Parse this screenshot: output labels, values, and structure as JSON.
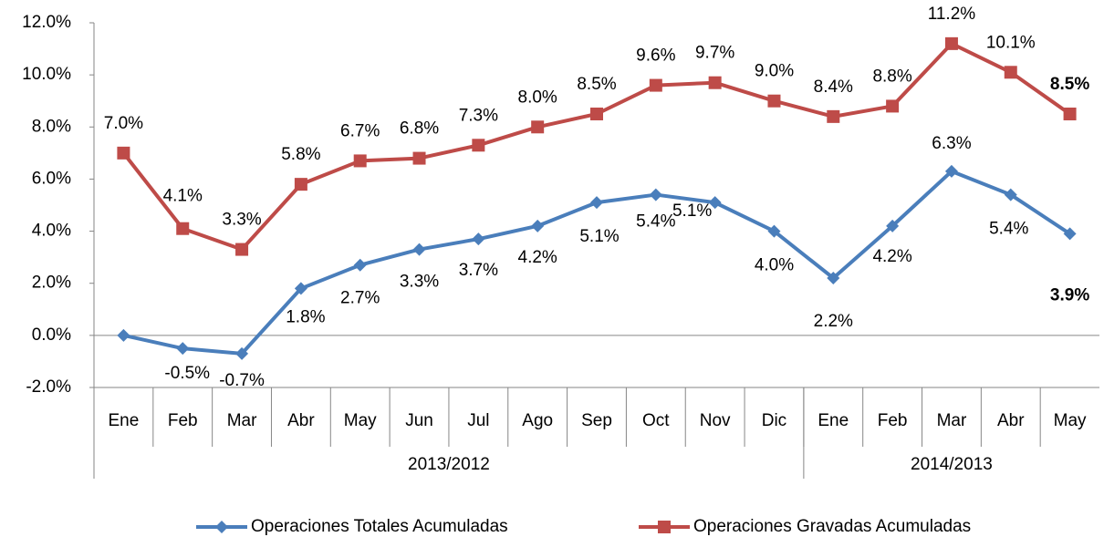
{
  "chart_data": {
    "type": "line",
    "categories": [
      "Ene",
      "Feb",
      "Mar",
      "Abr",
      "May",
      "Jun",
      "Jul",
      "Ago",
      "Sep",
      "Oct",
      "Nov",
      "Dic",
      "Ene",
      "Feb",
      "Mar",
      "Abr",
      "May"
    ],
    "groups": [
      {
        "label": "2013/2012",
        "span": 12
      },
      {
        "label": "2014/2013",
        "span": 5
      }
    ],
    "series": [
      {
        "name": "Operaciones Totales Acumuladas",
        "color": "#4a7ebb",
        "marker": "diamond",
        "values": [
          0.0,
          -0.5,
          -0.7,
          1.8,
          2.7,
          3.3,
          3.7,
          4.2,
          5.1,
          5.4,
          5.1,
          4.0,
          2.2,
          4.2,
          6.3,
          5.4,
          3.9
        ],
        "value_labels": [
          null,
          "-0.5%",
          "-0.7%",
          "1.8%",
          "2.7%",
          "3.3%",
          "3.7%",
          "4.2%",
          "5.1%",
          "5.4%",
          "5.1%",
          "4.0%",
          "2.2%",
          "4.2%",
          "6.3%",
          "5.4%",
          "3.9%"
        ]
      },
      {
        "name": "Operaciones Gravadas Acumuladas",
        "color": "#be4b48",
        "marker": "square",
        "values": [
          7.0,
          4.1,
          3.3,
          5.8,
          6.7,
          6.8,
          7.3,
          8.0,
          8.5,
          9.6,
          9.7,
          9.0,
          8.4,
          8.8,
          11.2,
          10.1,
          8.5
        ],
        "value_labels": [
          "7.0%",
          "4.1%",
          "3.3%",
          "5.8%",
          "6.7%",
          "6.8%",
          "7.3%",
          "8.0%",
          "8.5%",
          "9.6%",
          "9.7%",
          "9.0%",
          "8.4%",
          "8.8%",
          "11.2%",
          "10.1%",
          "8.5%"
        ]
      }
    ],
    "ylim": [
      -2,
      12
    ],
    "yticks": [
      {
        "value": -2,
        "label": "-2.0%"
      },
      {
        "value": 0,
        "label": "0.0%"
      },
      {
        "value": 2,
        "label": "2.0%"
      },
      {
        "value": 4,
        "label": "4.0%"
      },
      {
        "value": 6,
        "label": "6.0%"
      },
      {
        "value": 8,
        "label": "8.0%"
      },
      {
        "value": 10,
        "label": "10.0%"
      },
      {
        "value": 12,
        "label": "12.0%"
      }
    ],
    "legend": "bottom"
  }
}
